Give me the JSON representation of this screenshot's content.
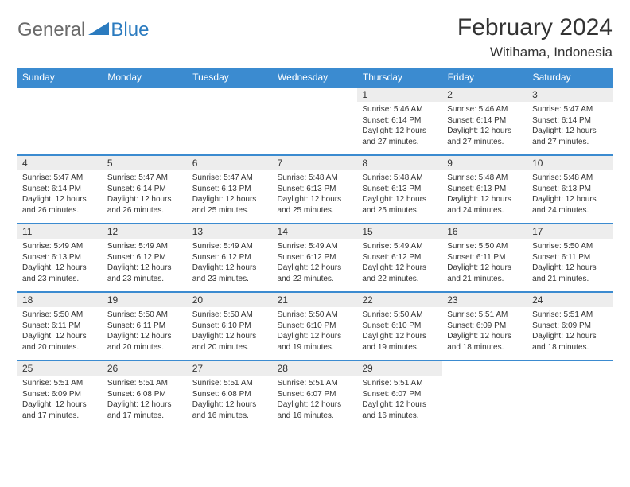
{
  "logo": {
    "general": "General",
    "blue": "Blue"
  },
  "title": "February 2024",
  "location": "Witihama, Indonesia",
  "weekdays": [
    "Sunday",
    "Monday",
    "Tuesday",
    "Wednesday",
    "Thursday",
    "Friday",
    "Saturday"
  ],
  "accent_color": "#3b8bd0",
  "daynum_bg": "#ededed",
  "weeks": [
    [
      null,
      null,
      null,
      null,
      {
        "n": "1",
        "sr": "5:46 AM",
        "ss": "6:14 PM",
        "dl": "12 hours and 27 minutes."
      },
      {
        "n": "2",
        "sr": "5:46 AM",
        "ss": "6:14 PM",
        "dl": "12 hours and 27 minutes."
      },
      {
        "n": "3",
        "sr": "5:47 AM",
        "ss": "6:14 PM",
        "dl": "12 hours and 27 minutes."
      }
    ],
    [
      {
        "n": "4",
        "sr": "5:47 AM",
        "ss": "6:14 PM",
        "dl": "12 hours and 26 minutes."
      },
      {
        "n": "5",
        "sr": "5:47 AM",
        "ss": "6:14 PM",
        "dl": "12 hours and 26 minutes."
      },
      {
        "n": "6",
        "sr": "5:47 AM",
        "ss": "6:13 PM",
        "dl": "12 hours and 25 minutes."
      },
      {
        "n": "7",
        "sr": "5:48 AM",
        "ss": "6:13 PM",
        "dl": "12 hours and 25 minutes."
      },
      {
        "n": "8",
        "sr": "5:48 AM",
        "ss": "6:13 PM",
        "dl": "12 hours and 25 minutes."
      },
      {
        "n": "9",
        "sr": "5:48 AM",
        "ss": "6:13 PM",
        "dl": "12 hours and 24 minutes."
      },
      {
        "n": "10",
        "sr": "5:48 AM",
        "ss": "6:13 PM",
        "dl": "12 hours and 24 minutes."
      }
    ],
    [
      {
        "n": "11",
        "sr": "5:49 AM",
        "ss": "6:13 PM",
        "dl": "12 hours and 23 minutes."
      },
      {
        "n": "12",
        "sr": "5:49 AM",
        "ss": "6:12 PM",
        "dl": "12 hours and 23 minutes."
      },
      {
        "n": "13",
        "sr": "5:49 AM",
        "ss": "6:12 PM",
        "dl": "12 hours and 23 minutes."
      },
      {
        "n": "14",
        "sr": "5:49 AM",
        "ss": "6:12 PM",
        "dl": "12 hours and 22 minutes."
      },
      {
        "n": "15",
        "sr": "5:49 AM",
        "ss": "6:12 PM",
        "dl": "12 hours and 22 minutes."
      },
      {
        "n": "16",
        "sr": "5:50 AM",
        "ss": "6:11 PM",
        "dl": "12 hours and 21 minutes."
      },
      {
        "n": "17",
        "sr": "5:50 AM",
        "ss": "6:11 PM",
        "dl": "12 hours and 21 minutes."
      }
    ],
    [
      {
        "n": "18",
        "sr": "5:50 AM",
        "ss": "6:11 PM",
        "dl": "12 hours and 20 minutes."
      },
      {
        "n": "19",
        "sr": "5:50 AM",
        "ss": "6:11 PM",
        "dl": "12 hours and 20 minutes."
      },
      {
        "n": "20",
        "sr": "5:50 AM",
        "ss": "6:10 PM",
        "dl": "12 hours and 20 minutes."
      },
      {
        "n": "21",
        "sr": "5:50 AM",
        "ss": "6:10 PM",
        "dl": "12 hours and 19 minutes."
      },
      {
        "n": "22",
        "sr": "5:50 AM",
        "ss": "6:10 PM",
        "dl": "12 hours and 19 minutes."
      },
      {
        "n": "23",
        "sr": "5:51 AM",
        "ss": "6:09 PM",
        "dl": "12 hours and 18 minutes."
      },
      {
        "n": "24",
        "sr": "5:51 AM",
        "ss": "6:09 PM",
        "dl": "12 hours and 18 minutes."
      }
    ],
    [
      {
        "n": "25",
        "sr": "5:51 AM",
        "ss": "6:09 PM",
        "dl": "12 hours and 17 minutes."
      },
      {
        "n": "26",
        "sr": "5:51 AM",
        "ss": "6:08 PM",
        "dl": "12 hours and 17 minutes."
      },
      {
        "n": "27",
        "sr": "5:51 AM",
        "ss": "6:08 PM",
        "dl": "12 hours and 16 minutes."
      },
      {
        "n": "28",
        "sr": "5:51 AM",
        "ss": "6:07 PM",
        "dl": "12 hours and 16 minutes."
      },
      {
        "n": "29",
        "sr": "5:51 AM",
        "ss": "6:07 PM",
        "dl": "12 hours and 16 minutes."
      },
      null,
      null
    ]
  ],
  "labels": {
    "sunrise": "Sunrise:",
    "sunset": "Sunset:",
    "daylight": "Daylight:"
  }
}
